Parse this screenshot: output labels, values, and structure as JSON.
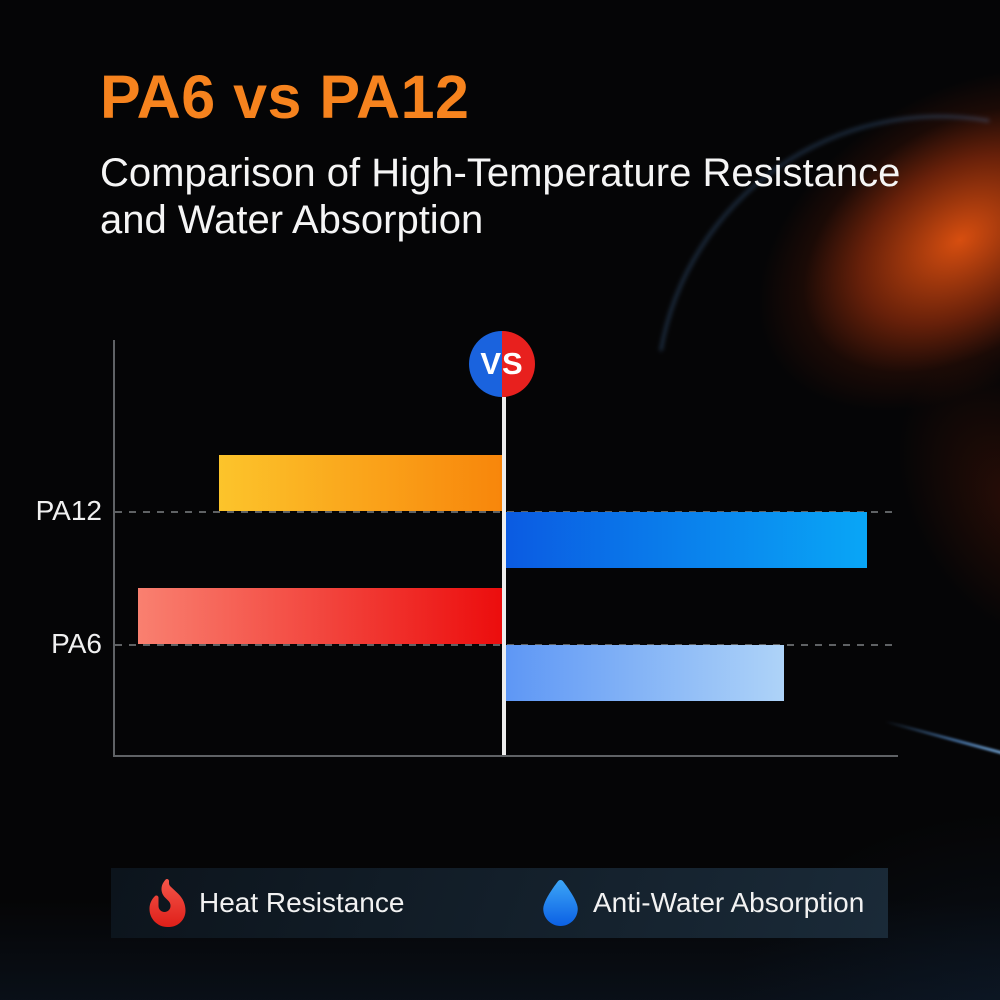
{
  "header": {
    "title": "PA6 vs PA12",
    "subtitle_line1": "Comparison of High-Temperature Resistance",
    "subtitle_line2": "and Water Absorption"
  },
  "colors": {
    "background": "#050506",
    "title_orange": "#F6831E",
    "subtitle_white": "#F5F5F5",
    "axis_line": "rgba(170,175,181,0.55)",
    "gridline": "rgba(205,210,215,0.45)",
    "center_line": "#EDEDED",
    "category_label": "#F0F0F0",
    "legend_text": "#F2F2F2",
    "legend_panel_start": "#0C141C",
    "legend_panel_end": "#1A2A38"
  },
  "vs_badge": {
    "label": "VS",
    "left_color": "#1A63DE",
    "right_color": "#E8201E"
  },
  "chart_data": {
    "type": "bar",
    "variant": "horizontal-diverging",
    "categories": [
      "PA12",
      "PA6"
    ],
    "axis": {
      "numeric_scale_visible": false,
      "max_pct": 100
    },
    "series": [
      {
        "name": "Heat Resistance",
        "side": "left",
        "values_pct": [
          73,
          94
        ],
        "bar_gradients": [
          [
            "#FCC42B",
            "#F8860B"
          ],
          [
            "#F98070",
            "#EC0D0D"
          ]
        ]
      },
      {
        "name": "Anti-Water Absorption",
        "side": "right",
        "values_pct": [
          92,
          71
        ],
        "bar_gradients": [
          [
            "#0B5BE2",
            "#09A6F6"
          ],
          [
            "#5E97F5",
            "#AED3F8"
          ]
        ]
      }
    ],
    "legend_position": "bottom"
  },
  "legend": {
    "items": [
      {
        "icon": "flame-icon",
        "label": "Heat Resistance",
        "icon_colors": [
          "#F4564A",
          "#DF1F19"
        ]
      },
      {
        "icon": "water-drop-icon",
        "label": "Anti-Water Absorption",
        "icon_colors": [
          "#3DA6F7",
          "#0B60E4"
        ]
      }
    ]
  }
}
